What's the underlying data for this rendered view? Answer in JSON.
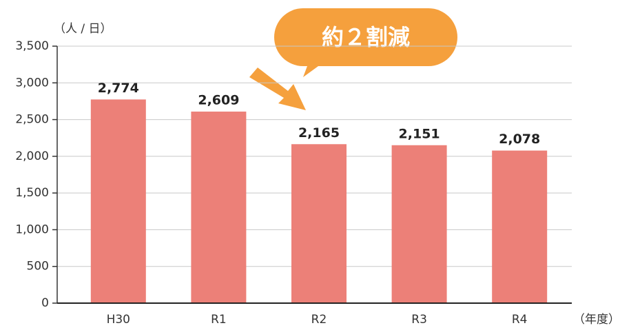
{
  "chart_data": {
    "type": "bar",
    "y_label": "（人 / 日）",
    "x_label": "（年度）",
    "annotation": "約２割減",
    "categories": [
      "H30",
      "R1",
      "R2",
      "R3",
      "R4"
    ],
    "values": [
      2774,
      2609,
      2165,
      2151,
      2078
    ],
    "value_labels": [
      "2,774",
      "2,609",
      "2,165",
      "2,151",
      "2,078"
    ],
    "color": "#ec8078",
    "ylim": [
      0,
      3500
    ],
    "yticks": [
      0,
      500,
      {
        "value": 1000,
        "label": "1,000"
      },
      {
        "value": 1500,
        "label": "1,500"
      },
      {
        "value": 2000,
        "label": "2,000"
      },
      {
        "value": 2500,
        "label": "2,500"
      },
      {
        "value": 3000,
        "label": "3,000"
      },
      {
        "value": 3500,
        "label": "3,500"
      }
    ],
    "grid": true
  }
}
